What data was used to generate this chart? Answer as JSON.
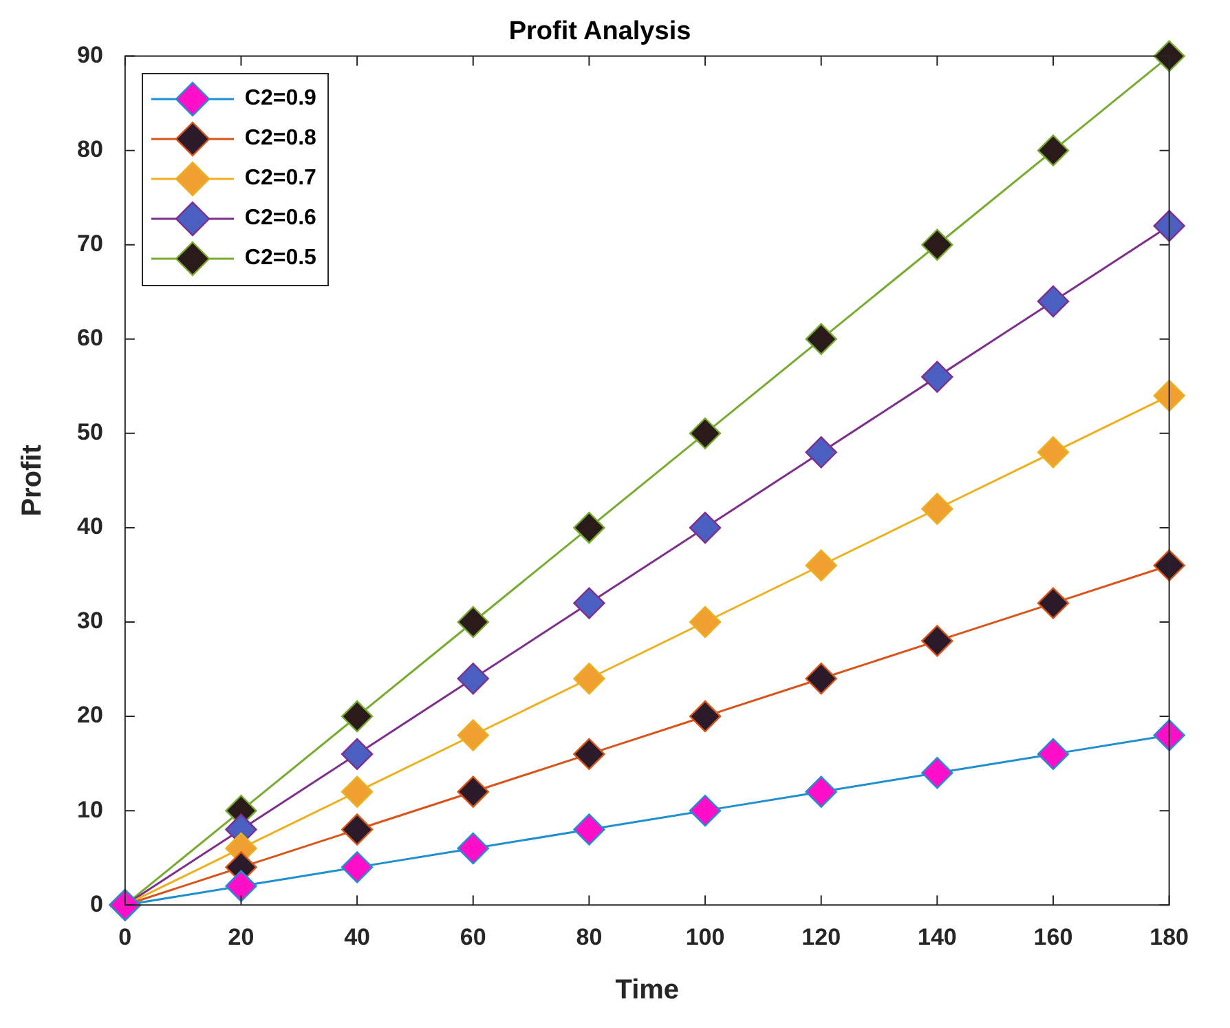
{
  "chart_data": {
    "type": "line",
    "title": "Profit Analysis",
    "xlabel": "Time",
    "ylabel": "Profit",
    "x": [
      0,
      20,
      40,
      60,
      80,
      100,
      120,
      140,
      160,
      180
    ],
    "xlim": [
      0,
      180
    ],
    "xticks": [
      0,
      20,
      40,
      60,
      80,
      100,
      120,
      140,
      160,
      180
    ],
    "ylim": [
      0,
      90
    ],
    "yticks": [
      0,
      10,
      20,
      30,
      40,
      50,
      60,
      70,
      80,
      90
    ],
    "grid": false,
    "legend": "top left",
    "marker": "diamond",
    "line_style": "solid",
    "series": [
      {
        "name": "C2=0.9",
        "color": "#1f8fd0",
        "colors": [
          "#ff10c8",
          "#ff10c8",
          "#ff10c8",
          "#ff10c8",
          "#ff10c8",
          "#ff10c8",
          "#ff10c8",
          "#ff10c8",
          "#ff10c8",
          "#ff10c8"
        ],
        "values": [
          0,
          2,
          4,
          6,
          8,
          10,
          12,
          14,
          16,
          18
        ]
      },
      {
        "name": "C2=0.8",
        "color": "#d9541a",
        "colors": [
          "#2a1a2a",
          "#2a1a2a",
          "#2a1a2a",
          "#2a1a2a",
          "#2a1a2a",
          "#2a1a2a",
          "#2a1a2a",
          "#2a1a2a",
          "#2a1a2a",
          "#2a1a2a"
        ],
        "values": [
          0,
          4,
          8,
          12,
          16,
          20,
          24,
          28,
          32,
          36
        ]
      },
      {
        "name": "C2=0.7",
        "color": "#edb120",
        "colors": [
          "#f0a030",
          "#f0a030",
          "#f0a030",
          "#f0a030",
          "#f0a030",
          "#f0a030",
          "#f0a030",
          "#f0a030",
          "#f0a030",
          "#f0a030"
        ],
        "values": [
          0,
          6,
          12,
          18,
          24,
          30,
          36,
          42,
          48,
          54
        ]
      },
      {
        "name": "C2=0.6",
        "color": "#7e2f8e",
        "colors": [
          "#4a5fc0",
          "#4a5fc0",
          "#4a5fc0",
          "#4a5fc0",
          "#4a5fc0",
          "#4a5fc0",
          "#4a5fc0",
          "#4a5fc0",
          "#4a5fc0",
          "#4a5fc0"
        ],
        "values": [
          0,
          8,
          16,
          24,
          32,
          40,
          48,
          56,
          64,
          72
        ]
      },
      {
        "name": "C2=0.5",
        "color": "#77ac30",
        "colors": [
          "#2a1a1a",
          "#2a1a1a",
          "#2a1a1a",
          "#2a1a1a",
          "#2a1a1a",
          "#2a1a1a",
          "#2a1a1a",
          "#2a1a1a",
          "#2a1a1a",
          "#2a1a1a"
        ],
        "values": [
          0,
          10,
          20,
          30,
          40,
          50,
          60,
          70,
          80,
          90
        ]
      }
    ]
  }
}
